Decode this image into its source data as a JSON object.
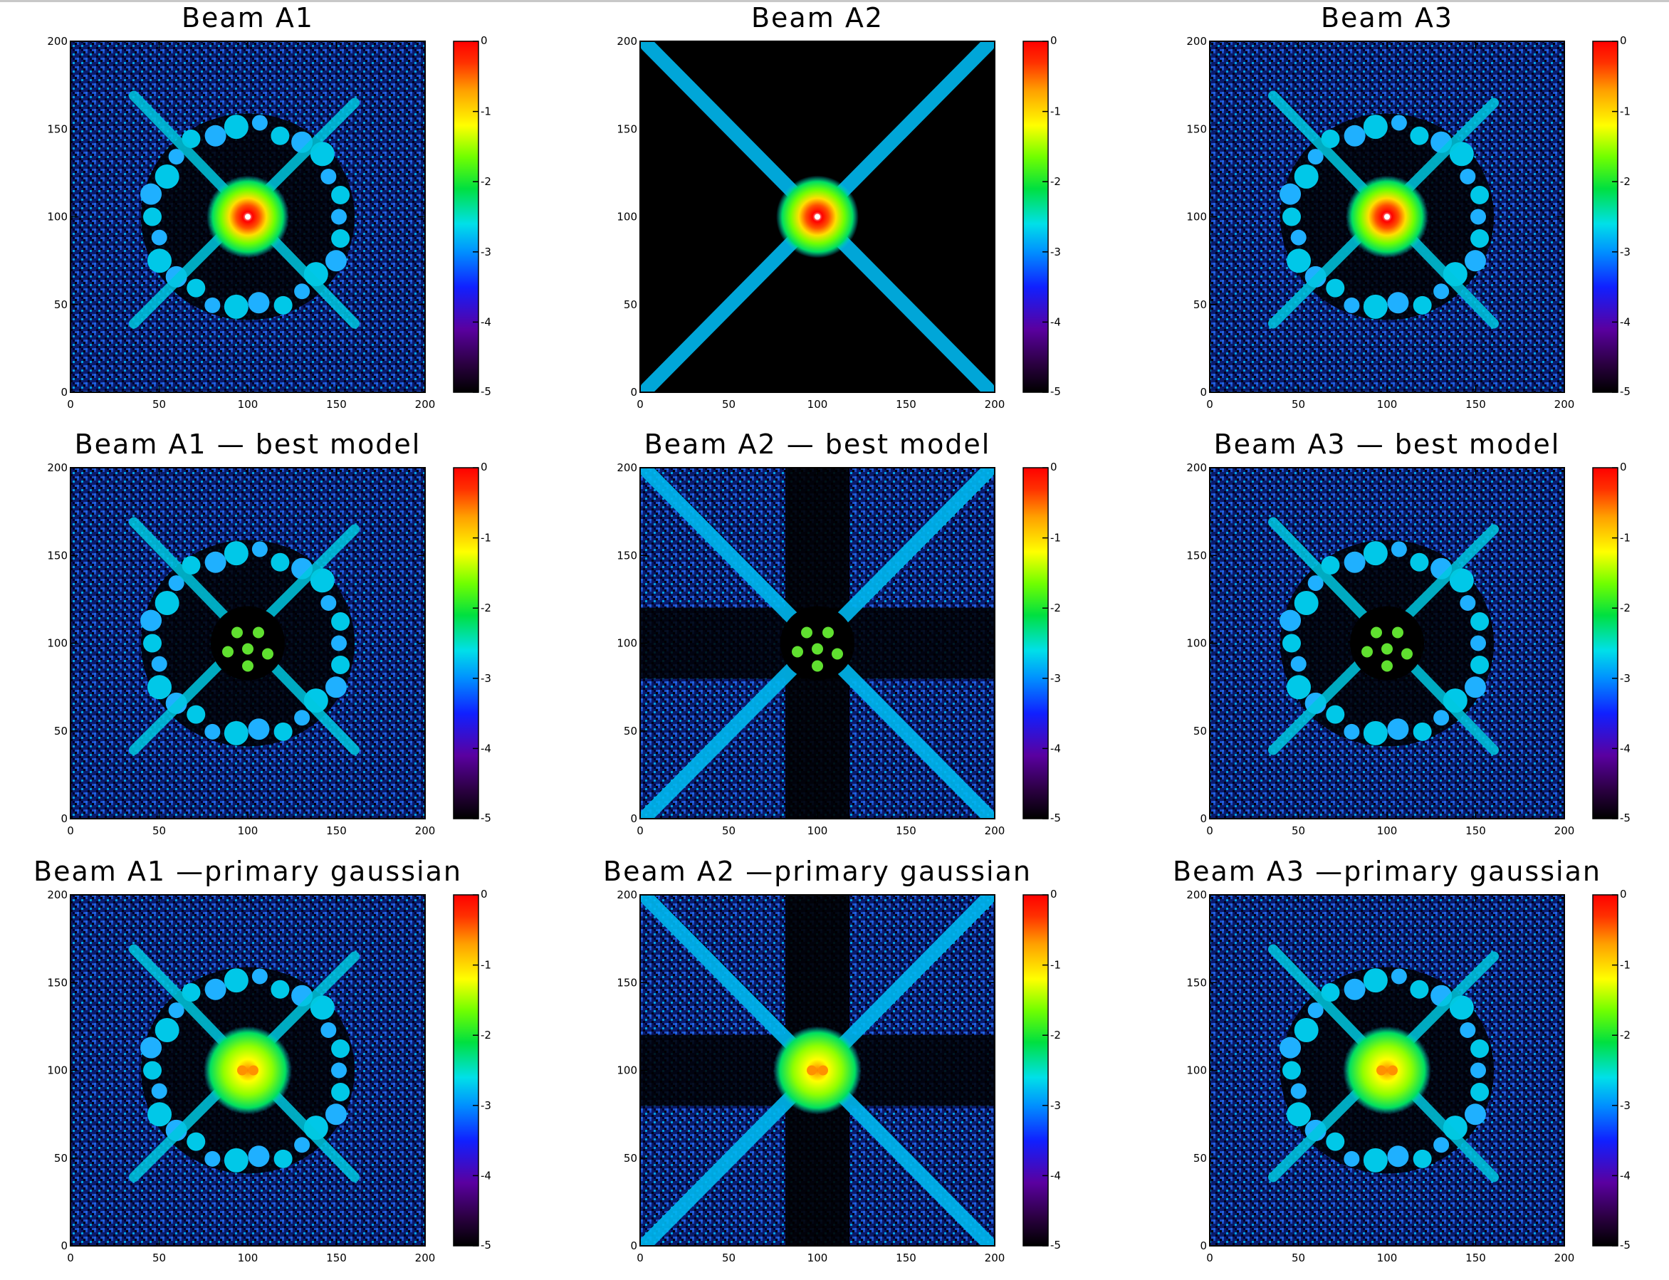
{
  "chart_data": [
    {
      "type": "heatmap",
      "title": "Beam A1",
      "beam": "A1",
      "pattern": "ring",
      "center_peak": "high",
      "xlim": [
        0,
        200
      ],
      "ylim": [
        0,
        200
      ],
      "colorbar": {
        "range": [
          -5,
          0
        ],
        "ticks": [
          0,
          -1,
          -2,
          -3,
          -4,
          -5
        ]
      },
      "x_ticks": [
        0,
        50,
        100,
        150,
        200
      ],
      "y_ticks": [
        0,
        50,
        100,
        150,
        200
      ]
    },
    {
      "type": "heatmap",
      "title": "Beam A2",
      "beam": "A2",
      "pattern": "cross",
      "center_peak": "high",
      "xlim": [
        0,
        200
      ],
      "ylim": [
        0,
        200
      ],
      "colorbar": {
        "range": [
          -5,
          0
        ],
        "ticks": [
          0,
          -1,
          -2,
          -3,
          -4,
          -5
        ]
      },
      "x_ticks": [
        0,
        50,
        100,
        150,
        200
      ],
      "y_ticks": [
        0,
        50,
        100,
        150,
        200
      ]
    },
    {
      "type": "heatmap",
      "title": "Beam A3",
      "beam": "A3",
      "pattern": "ring",
      "center_peak": "high",
      "xlim": [
        0,
        200
      ],
      "ylim": [
        0,
        200
      ],
      "colorbar": {
        "range": [
          -5,
          0
        ],
        "ticks": [
          0,
          -1,
          -2,
          -3,
          -4,
          -5
        ]
      },
      "x_ticks": [
        0,
        50,
        100,
        150,
        200
      ],
      "y_ticks": [
        0,
        50,
        100,
        150,
        200
      ]
    },
    {
      "type": "heatmap",
      "title": "Beam A1 — best model",
      "beam": "A1",
      "pattern": "ring",
      "center_peak": "residual",
      "xlim": [
        0,
        200
      ],
      "ylim": [
        0,
        200
      ],
      "colorbar": {
        "range": [
          -5,
          0
        ],
        "ticks": [
          0,
          -1,
          -2,
          -3,
          -4,
          -5
        ]
      },
      "x_ticks": [
        0,
        50,
        100,
        150,
        200
      ],
      "y_ticks": [
        0,
        50,
        100,
        150,
        200
      ]
    },
    {
      "type": "heatmap",
      "title": "Beam A2 — best model",
      "beam": "A2",
      "pattern": "cross",
      "center_peak": "residual",
      "xlim": [
        0,
        200
      ],
      "ylim": [
        0,
        200
      ],
      "colorbar": {
        "range": [
          -5,
          0
        ],
        "ticks": [
          0,
          -1,
          -2,
          -3,
          -4,
          -5
        ]
      },
      "x_ticks": [
        0,
        50,
        100,
        150,
        200
      ],
      "y_ticks": [
        0,
        50,
        100,
        150,
        200
      ]
    },
    {
      "type": "heatmap",
      "title": "Beam A3 — best model",
      "beam": "A3",
      "pattern": "ring",
      "center_peak": "residual",
      "xlim": [
        0,
        200
      ],
      "ylim": [
        0,
        200
      ],
      "colorbar": {
        "range": [
          -5,
          0
        ],
        "ticks": [
          0,
          -1,
          -2,
          -3,
          -4,
          -5
        ]
      },
      "x_ticks": [
        0,
        50,
        100,
        150,
        200
      ],
      "y_ticks": [
        0,
        50,
        100,
        150,
        200
      ]
    },
    {
      "type": "heatmap",
      "title": "Beam A1 —primary gaussian",
      "beam": "A1",
      "pattern": "ring",
      "center_peak": "medium",
      "xlim": [
        0,
        200
      ],
      "ylim": [
        0,
        200
      ],
      "colorbar": {
        "range": [
          -5,
          0
        ],
        "ticks": [
          0,
          -1,
          -2,
          -3,
          -4,
          -5
        ]
      },
      "x_ticks": [
        0,
        50,
        100,
        150,
        200
      ],
      "y_ticks": [
        0,
        50,
        100,
        150,
        200
      ]
    },
    {
      "type": "heatmap",
      "title": "Beam A2 —primary gaussian",
      "beam": "A2",
      "pattern": "cross",
      "center_peak": "medium",
      "xlim": [
        0,
        200
      ],
      "ylim": [
        0,
        200
      ],
      "colorbar": {
        "range": [
          -5,
          0
        ],
        "ticks": [
          0,
          -1,
          -2,
          -3,
          -4,
          -5
        ]
      },
      "x_ticks": [
        0,
        50,
        100,
        150,
        200
      ],
      "y_ticks": [
        0,
        50,
        100,
        150,
        200
      ]
    },
    {
      "type": "heatmap",
      "title": "Beam A3 —primary gaussian",
      "beam": "A3",
      "pattern": "ring",
      "center_peak": "medium",
      "xlim": [
        0,
        200
      ],
      "ylim": [
        0,
        200
      ],
      "colorbar": {
        "range": [
          -5,
          0
        ],
        "ticks": [
          0,
          -1,
          -2,
          -3,
          -4,
          -5
        ]
      },
      "x_ticks": [
        0,
        50,
        100,
        150,
        200
      ],
      "y_ticks": [
        0,
        50,
        100,
        150,
        200
      ]
    }
  ],
  "colormap": [
    "#000000",
    "#2a0040",
    "#5a00a0",
    "#1020ff",
    "#0090ff",
    "#00e0e8",
    "#00e040",
    "#70ff00",
    "#ffff00",
    "#ffa000",
    "#ff3000",
    "#ff0000"
  ]
}
